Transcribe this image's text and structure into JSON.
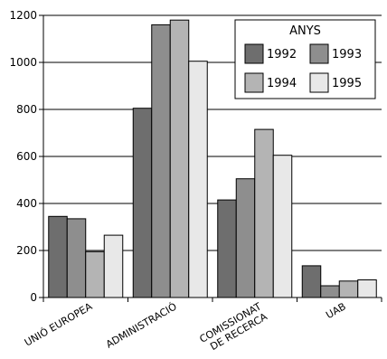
{
  "chart_data": {
    "type": "bar",
    "categories": [
      [
        "UNIÓ EUROPEA"
      ],
      [
        "ADMINISTRACIÓ"
      ],
      [
        "COMISSIONAT",
        "DE RECERCA"
      ],
      [
        "UAB"
      ]
    ],
    "series": [
      {
        "name": "1992",
        "color": "#6e6e6e",
        "values": [
          345,
          805,
          415,
          135
        ]
      },
      {
        "name": "1993",
        "color": "#8e8e8e",
        "values": [
          335,
          1160,
          505,
          50
        ]
      },
      {
        "name": "1994",
        "color": "#b4b4b4",
        "values": [
          195,
          1180,
          715,
          70
        ]
      },
      {
        "name": "1995",
        "color": "#e8e8e8",
        "values": [
          265,
          1005,
          605,
          75
        ]
      }
    ],
    "title": "",
    "xlabel": "",
    "ylabel": "",
    "ylim": [
      0,
      1200
    ],
    "yticks": [
      0,
      200,
      400,
      600,
      800,
      1000,
      1200
    ],
    "grid": true,
    "legend": {
      "title": "ANYS",
      "position": "top-right"
    }
  }
}
